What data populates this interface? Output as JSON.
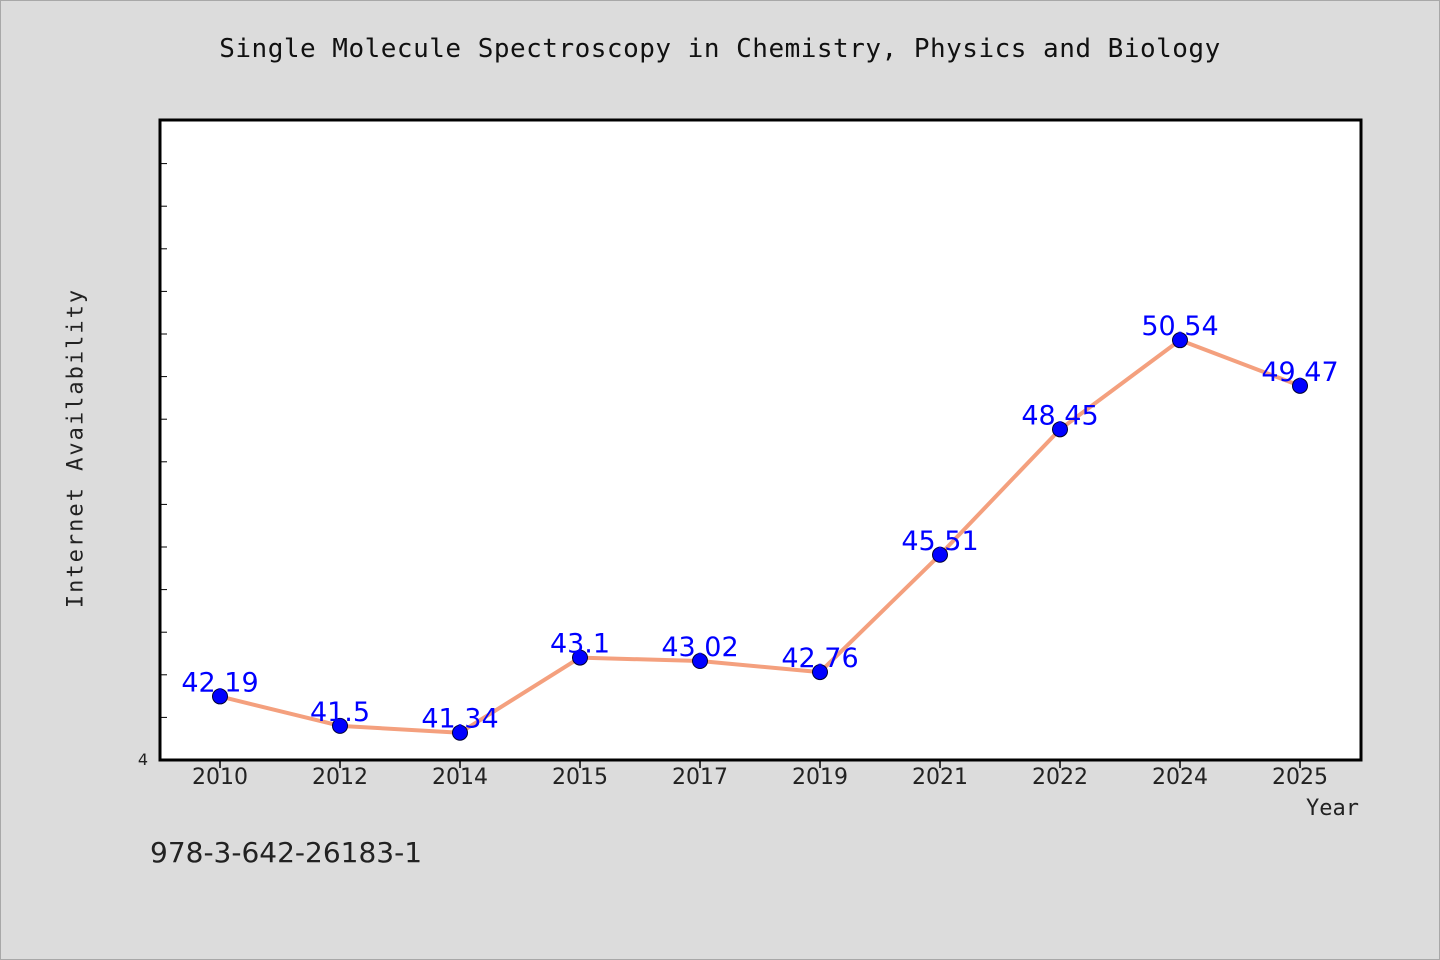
{
  "chart_data": {
    "type": "line",
    "title": "Single Molecule Spectroscopy in Chemistry, Physics and Biology",
    "xlabel": "Year",
    "ylabel": "Internet Availability",
    "categories": [
      "2010",
      "2012",
      "2014",
      "2015",
      "2017",
      "2019",
      "2021",
      "2022",
      "2024",
      "2025"
    ],
    "series": [
      {
        "values": [
          42.19,
          41.5,
          41.34,
          43.1,
          43.02,
          42.76,
          45.51,
          48.45,
          50.54,
          49.47
        ]
      }
    ],
    "data_labels": [
      "42.19",
      "41.5",
      "41.34",
      "43.1",
      "43.02",
      "42.76",
      "45.51",
      "48.45",
      "50.54",
      "49.47"
    ],
    "y_tick_label": "4",
    "ylim": [
      40.7,
      55.7
    ],
    "grid": false,
    "colors": {
      "line": "#f4a07e",
      "marker": "#0000ff",
      "label": "#0000ff",
      "plot_bg": "#ffffff",
      "page_bg": "#dcdcdc"
    }
  },
  "footer": {
    "isbn": "978-3-642-26183-1"
  }
}
